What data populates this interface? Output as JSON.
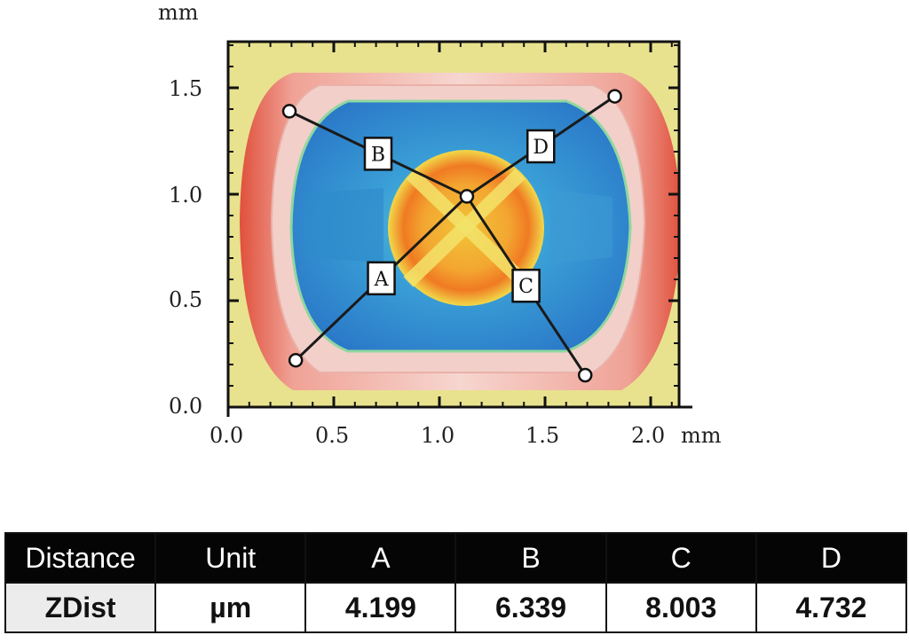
{
  "figure": {
    "x_unit_label": "mm",
    "y_unit_label": "mm",
    "x_ticks": [
      "0.0",
      "0.5",
      "1.0",
      "1.5",
      "2.0"
    ],
    "y_ticks": [
      "0.0",
      "0.5",
      "1.0",
      "1.5"
    ],
    "colors": {
      "background": "#e8e28e",
      "rim_red": "#e34d3b",
      "rim_pink": "#f2c7c0",
      "floor_blue": "#2e86cf",
      "floor_cyan": "#5fd0e0",
      "center_orange": "#f07a22",
      "center_yellow": "#f6d44a"
    },
    "center_point": {
      "x": 1.13,
      "y": 0.99
    },
    "profiles": [
      {
        "id": "A",
        "label": "A",
        "end": {
          "x": 0.32,
          "y": 0.22
        }
      },
      {
        "id": "B",
        "label": "B",
        "end": {
          "x": 0.29,
          "y": 1.39
        }
      },
      {
        "id": "C",
        "label": "C",
        "end": {
          "x": 1.69,
          "y": 0.15
        }
      },
      {
        "id": "D",
        "label": "D",
        "end": {
          "x": 1.83,
          "y": 1.46
        }
      }
    ]
  },
  "table": {
    "headers": [
      "Distance",
      "Unit",
      "A",
      "B",
      "C",
      "D"
    ],
    "rows": [
      {
        "label": "ZDist",
        "unit": "µm",
        "values": [
          "4.199",
          "6.339",
          "8.003",
          "4.732"
        ]
      }
    ]
  }
}
